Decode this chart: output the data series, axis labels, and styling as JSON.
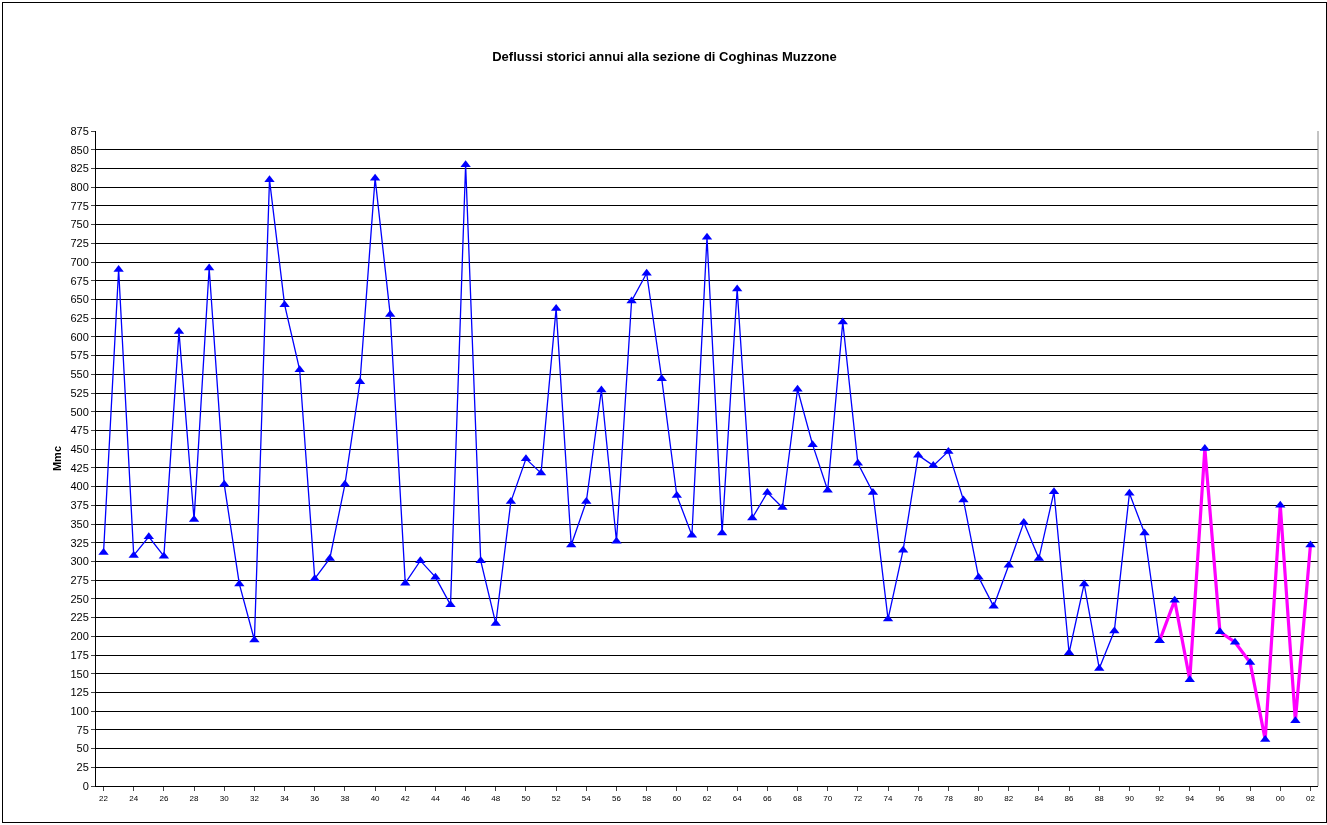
{
  "chart_data": {
    "type": "line",
    "title": "Deflussi storici annui alla sezione di Coghinas Muzzone",
    "ylabel": "Mmc",
    "categories": [
      "22",
      null,
      "24",
      null,
      "26",
      null,
      "28",
      null,
      "30",
      null,
      "32",
      null,
      "34",
      null,
      "36",
      null,
      "38",
      null,
      "40",
      null,
      "42",
      null,
      "44",
      null,
      "46",
      null,
      "48",
      null,
      "50",
      null,
      "52",
      null,
      "54",
      null,
      "56",
      null,
      "58",
      null,
      "60",
      null,
      "62",
      null,
      "64",
      null,
      "66",
      null,
      "68",
      null,
      "70",
      null,
      "72",
      null,
      "74",
      null,
      "76",
      null,
      "78",
      null,
      "80",
      null,
      "82",
      null,
      "84",
      null,
      "86",
      null,
      "88",
      null,
      "90",
      null,
      "92",
      null,
      "94",
      null,
      "96",
      null,
      "98",
      null,
      "00",
      null,
      "02"
    ],
    "series": [
      {
        "color": "#0000ff",
        "values": [
          312,
          690,
          308,
          333,
          307,
          607,
          356,
          692,
          403,
          270,
          195,
          810,
          643,
          556,
          277,
          304,
          403,
          540,
          812,
          630,
          271,
          301,
          279,
          242,
          830,
          301,
          217,
          380,
          437,
          418,
          638,
          322,
          380,
          529,
          327,
          648,
          685,
          544,
          388,
          335,
          733,
          338,
          664,
          358,
          392,
          372,
          530,
          456,
          395,
          620,
          431,
          392,
          223,
          315,
          442,
          428,
          447,
          382,
          279,
          240,
          295,
          352,
          304,
          393,
          178,
          270,
          157,
          207,
          391,
          338,
          194,
          null,
          null,
          null,
          null,
          null,
          null,
          null,
          null,
          null,
          null
        ]
      },
      {
        "color": "#ff00ff",
        "colors": [
          "#0000ff",
          "#0000ff",
          "#0000ff",
          "#0000ff",
          "#0000ff",
          "#0000ff",
          "#0000ff",
          "#0000ff",
          "#0000ff",
          "#0000ff",
          "#0000ff",
          "#0000ff",
          "#0000ff",
          "#0000ff",
          "#0000ff",
          "#0000ff",
          "#0000ff",
          "#0000ff",
          "#0000ff",
          "#0000ff",
          "#0000ff",
          "#0000ff",
          "#0000ff",
          "#0000ff",
          "#0000ff",
          "#0000ff",
          "#0000ff",
          "#0000ff",
          "#0000ff",
          "#0000ff",
          "#0000ff",
          "#0000ff",
          "#0000ff",
          "#0000ff",
          "#0000ff",
          "#0000ff",
          "#0000ff",
          "#0000ff",
          "#0000ff",
          "#0000ff",
          "#0000ff",
          "#0000ff",
          "#0000ff",
          "#0000ff",
          "#0000ff",
          "#0000ff",
          "#0000ff",
          "#0000ff",
          "#0000ff",
          "#0000ff",
          "#0000ff",
          "#0000ff",
          "#0000ff",
          "#0000ff",
          "#0000ff",
          "#0000ff",
          "#0000ff",
          "#0000ff",
          "#0000ff",
          "#0000ff",
          "#0000ff",
          "#0000ff",
          "#0000ff",
          "#0000ff",
          "#0000ff",
          "#0000ff",
          "#0000ff",
          "#0000ff",
          "#0000ff",
          "#0000ff",
          "#0000ff",
          "#0000ff",
          "#0000ff",
          "#0000ff",
          "#0000ff",
          "#0000ff",
          "#0000ff",
          "#0000ff",
          "#0000ff",
          "#0000ff",
          "#0000ff"
        ],
        "values": [
          null,
          null,
          null,
          null,
          null,
          null,
          null,
          null,
          null,
          null,
          null,
          null,
          null,
          null,
          null,
          null,
          null,
          null,
          null,
          null,
          null,
          null,
          null,
          null,
          null,
          null,
          null,
          null,
          null,
          null,
          null,
          null,
          null,
          null,
          null,
          null,
          null,
          null,
          null,
          null,
          null,
          null,
          null,
          null,
          null,
          null,
          null,
          null,
          null,
          null,
          null,
          null,
          null,
          null,
          null,
          null,
          null,
          null,
          null,
          null,
          null,
          null,
          null,
          null,
          null,
          null,
          null,
          null,
          null,
          null,
          194,
          248,
          142,
          451,
          206,
          192,
          165,
          62,
          375,
          87,
          322
        ]
      }
    ],
    "ylim": [
      0,
      875
    ],
    "yticks": [
      0,
      25,
      50,
      75,
      100,
      125,
      150,
      175,
      200,
      225,
      250,
      275,
      300,
      325,
      350,
      375,
      400,
      425,
      450,
      475,
      500,
      525,
      550,
      575,
      600,
      625,
      650,
      675,
      700,
      725,
      750,
      775,
      800,
      825,
      850,
      875
    ],
    "grid": "y",
    "marker": "triangle",
    "line_style": "solid"
  }
}
